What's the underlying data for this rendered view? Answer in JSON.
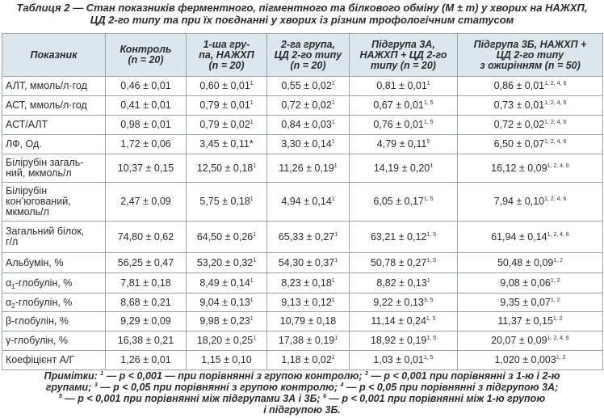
{
  "title": [
    "Таблиця 2 — Стан показників ферментного, пігментного та білкового обміну (M ± m) у хворих на НАЖХП,",
    "ЦД 2-го типу та при їх поєднанні у хворих із різним трофологічним статусом"
  ],
  "table": {
    "header": [
      [
        "Показник"
      ],
      [
        "Контроль",
        "(n = 20)"
      ],
      [
        "1-ша гру-",
        "па, НАЖХП",
        "(n = 20)"
      ],
      [
        "2-га група,",
        "ЦД 2-го типу",
        "(n = 20)"
      ],
      [
        "Підгрупа 3А,",
        "НАЖХП + ЦД 2-го",
        "типу (n = 20)"
      ],
      [
        "Підгрупа 3Б, НАЖХП +",
        "ЦД 2-го типу",
        "з ожирінням (n = 50)"
      ]
    ],
    "rows": [
      {
        "label": [
          [
            {
              "text": "АЛТ, ммоль/л·год"
            }
          ]
        ],
        "cells": [
          {
            "value": "0,46 ± 0,01"
          },
          {
            "value": "0,60 ± 0,01",
            "sup": "1"
          },
          {
            "value": "0,55 ± 0,02",
            "sup": "1"
          },
          {
            "value": "0,81 ± 0,01",
            "sup": "1"
          },
          {
            "value": "0,86 ± 0,01",
            "sup": "1, 2, 4, 6"
          }
        ]
      },
      {
        "label": [
          [
            {
              "text": "АСТ, ммоль/л·год"
            }
          ]
        ],
        "cells": [
          {
            "value": "0,41 ± 0,01"
          },
          {
            "value": "0,79 ± 0,01",
            "sup": "1"
          },
          {
            "value": "0,72 ± 0,02",
            "sup": "1"
          },
          {
            "value": "0,67 ± 0,01",
            "sup": "1, 5"
          },
          {
            "value": "0,73 ± 0,01",
            "sup": "1, 2, 4, 6"
          }
        ]
      },
      {
        "label": [
          [
            {
              "text": "АСТ/АЛТ"
            }
          ]
        ],
        "cells": [
          {
            "value": "0,98 ± 0,01"
          },
          {
            "value": "0,79 ± 0,02",
            "sup": "1"
          },
          {
            "value": "0,84 ± 0,03",
            "sup": "1"
          },
          {
            "value": "0,76 ± 0,01",
            "sup": "1, 5"
          },
          {
            "value": "0,72 ± 0,02",
            "sup": "1, 2, 4, 6"
          }
        ]
      },
      {
        "label": [
          [
            {
              "text": "ЛФ, Од."
            }
          ]
        ],
        "cells": [
          {
            "value": "1,72 ± 0,06"
          },
          {
            "value": "3,45 ± 0,11*"
          },
          {
            "value": "3,30 ± 0,14",
            "sup": "1"
          },
          {
            "value": "4,79 ± 0,11",
            "sup": "5"
          },
          {
            "value": "6,50 ± 0,07",
            "sup": "1, 2, 4, 6"
          }
        ]
      },
      {
        "label": [
          [
            {
              "text": "Білірубін загаль-"
            }
          ],
          [
            {
              "text": "ний, мкмоль/л"
            }
          ]
        ],
        "cells": [
          {
            "value": "10,37 ± 0,15"
          },
          {
            "value": "12,50 ± 0,18",
            "sup": "1"
          },
          {
            "value": "11,26 ± 0,19",
            "sup": "1"
          },
          {
            "value": "14,19 ± 0,20",
            "sup": "1"
          },
          {
            "value": "16,12 ± 0,09",
            "sup": "1, 2, 4, 6"
          }
        ]
      },
      {
        "label": [
          [
            {
              "text": "Білірубін"
            }
          ],
          [
            {
              "text": "кон’югований,"
            }
          ],
          [
            {
              "text": "мкмоль/л"
            }
          ]
        ],
        "cells": [
          {
            "value": "2,47 ± 0,09"
          },
          {
            "value": "5,75 ± 0,18",
            "sup": "1"
          },
          {
            "value": "4,94 ± 0,14",
            "sup": "1"
          },
          {
            "value": "6,05 ± 0,17",
            "sup": "1, 5"
          },
          {
            "value": "7,94 ± 0,10",
            "sup": "1, 2, 4, 6"
          }
        ]
      },
      {
        "label": [
          [
            {
              "text": "Загальний білок,"
            }
          ],
          [
            {
              "text": "г/л"
            }
          ]
        ],
        "cells": [
          {
            "value": "74,80 ± 0,62"
          },
          {
            "value": "64,50 ± 0,26",
            "sup": "1"
          },
          {
            "value": "65,33 ± 0,27",
            "sup": "1"
          },
          {
            "value": "63,21 ± 0,12",
            "sup": "1, 5"
          },
          {
            "value": "61,94 ± 0,14",
            "sup": "1, 2, 4, 6"
          }
        ]
      },
      {
        "label": [
          [
            {
              "text": "Альбумін, %"
            }
          ]
        ],
        "cells": [
          {
            "value": "56,25 ± 0,47"
          },
          {
            "value": "53,20 ± 0,32",
            "sup": "1"
          },
          {
            "value": "54,30 ± 0,37",
            "sup": "1"
          },
          {
            "value": "50,78 ± 0,27",
            "sup": "1, 5"
          },
          {
            "value": "50,48 ± 0,09",
            "sup": "1, 2"
          }
        ]
      },
      {
        "label": [
          [
            {
              "text": "α"
            },
            {
              "sub": "1"
            },
            {
              "text": "-глобулін, %"
            }
          ]
        ],
        "cells": [
          {
            "value": "7,81 ± 0,18"
          },
          {
            "value": "8,49 ± 0,14",
            "sup": "1"
          },
          {
            "value": "8,23 ± 0,18",
            "sup": "1"
          },
          {
            "value": "8,82 ± 0,13",
            "sup": "1"
          },
          {
            "value": "9,08 ± 0,06",
            "sup": "1, 2"
          }
        ]
      },
      {
        "label": [
          [
            {
              "text": "α"
            },
            {
              "sub": "2"
            },
            {
              "text": "-глобулін, %"
            }
          ]
        ],
        "cells": [
          {
            "value": "8,68 ± 0,21"
          },
          {
            "value": "9,04 ± 0,13",
            "sup": "1"
          },
          {
            "value": "9,13 ± 0,12",
            "sup": "1"
          },
          {
            "value": "9,22 ± 0,13",
            "sup": "3, 5"
          },
          {
            "value": "9,35 ± 0,07",
            "sup": "1, 2"
          }
        ]
      },
      {
        "label": [
          [
            {
              "text": "β-глобулін, %"
            }
          ]
        ],
        "cells": [
          {
            "value": "9,29 ± 0,09"
          },
          {
            "value": "9,98 ± 0,23",
            "sup": "1"
          },
          {
            "value": "10,79 ± 0,18"
          },
          {
            "value": "11,14 ± 0,24",
            "sup": "1, 5"
          },
          {
            "value": "11,37 ± 0,15",
            "sup": "1, 2"
          }
        ]
      },
      {
        "label": [
          [
            {
              "text": "γ-глобулін, %"
            }
          ]
        ],
        "cells": [
          {
            "value": "16,38 ± 0,21"
          },
          {
            "value": "18,20 ± 0,25",
            "sup": "1"
          },
          {
            "value": "17,38 ± 0,19",
            "sup": "1"
          },
          {
            "value": "18,92 ± 0,19",
            "sup": "1, 5"
          },
          {
            "value": "20,07 ± 0,09",
            "sup": "1, 2, 4, 6"
          }
        ]
      },
      {
        "label": [
          [
            {
              "text": "Коефіцієнт А/Г"
            }
          ]
        ],
        "cells": [
          {
            "value": "1,26 ± 0,01"
          },
          {
            "value": "1,15 ± 0,10"
          },
          {
            "value": "1,18 ± 0,02",
            "sup": "1"
          },
          {
            "value": "1,03 ± 0,01",
            "sup": "1, 5"
          },
          {
            "value": "1,020 ± 0,003",
            "sup": "1, 2"
          }
        ]
      }
    ]
  },
  "notes": [
    [
      {
        "text": "Примітки: "
      },
      {
        "sup": "1"
      },
      {
        "text": " — p < 0,001 — при порівнянні з групою контролю; "
      },
      {
        "sup": "2"
      },
      {
        "text": " — p < 0,001 при порівнянні з 1-ю і 2-ю"
      }
    ],
    [
      {
        "text": "групами; "
      },
      {
        "sup": "3"
      },
      {
        "text": " — p < 0,05 при порівнянні з групою контролю; "
      },
      {
        "sup": "4"
      },
      {
        "text": " — p < 0,05 при порівнянні з підгрупою 3А;"
      }
    ],
    [
      {
        "sup": "5"
      },
      {
        "text": " — p < 0,001 при порівнянні між підгрупами 3А і 3Б; "
      },
      {
        "sup": "6"
      },
      {
        "text": " — p < 0,001 при порівнянні між 1-ю групою"
      }
    ],
    [
      {
        "text": "і підгрупою 3Б."
      }
    ]
  ]
}
